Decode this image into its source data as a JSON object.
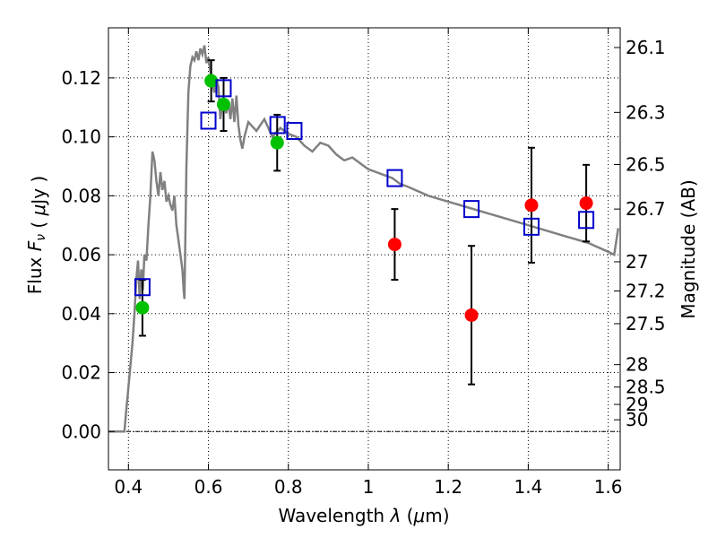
{
  "chart_data": {
    "type": "scatter",
    "xlabel": "Wavelength  λ (μm)",
    "ylabel": "Flux  Fν  ( μJy )",
    "y2label": "Magnitude (AB)",
    "xlim": [
      0.35,
      1.63
    ],
    "ylim": [
      -0.013,
      0.137
    ],
    "grid": true,
    "x_ticks": [
      0.4,
      0.6,
      0.8,
      1.0,
      1.2,
      1.4,
      1.6
    ],
    "x_tick_labels": [
      "0.4",
      "0.6",
      "0.8",
      "1",
      "1.2",
      "1.4",
      "1.6"
    ],
    "y_ticks": [
      0.0,
      0.02,
      0.04,
      0.06,
      0.08,
      0.1,
      0.12
    ],
    "y_tick_labels": [
      "0.00",
      "0.02",
      "0.04",
      "0.06",
      "0.08",
      "0.10",
      "0.12"
    ],
    "magnitude_ticks": [
      {
        "label": "26.1",
        "flux": 0.1303
      },
      {
        "label": "26.3",
        "flux": 0.1083
      },
      {
        "label": "26.5",
        "flux": 0.0906
      },
      {
        "label": "26.7",
        "flux": 0.0755
      },
      {
        "label": "27",
        "flux": 0.0576
      },
      {
        "label": "27.2",
        "flux": 0.0477
      },
      {
        "label": "27.5",
        "flux": 0.0366
      },
      {
        "label": "28",
        "flux": 0.0227
      },
      {
        "label": "28.5",
        "flux": 0.0151
      },
      {
        "label": "29",
        "flux": 0.0092
      },
      {
        "label": "30",
        "flux": 0.004
      }
    ],
    "series": [
      {
        "color": "#808080",
        "style": "line",
        "x": [
          0.35,
          0.39,
          0.395,
          0.398,
          0.41,
          0.415,
          0.42,
          0.424,
          0.428,
          0.432,
          0.436,
          0.44,
          0.445,
          0.45,
          0.455,
          0.46,
          0.465,
          0.47,
          0.475,
          0.48,
          0.485,
          0.49,
          0.495,
          0.5,
          0.505,
          0.51,
          0.515,
          0.52,
          0.525,
          0.53,
          0.535,
          0.538,
          0.54,
          0.545,
          0.55,
          0.555,
          0.56,
          0.565,
          0.57,
          0.575,
          0.58,
          0.585,
          0.59,
          0.595,
          0.6,
          0.605,
          0.61,
          0.615,
          0.62,
          0.625,
          0.63,
          0.635,
          0.64,
          0.645,
          0.65,
          0.655,
          0.66,
          0.665,
          0.67,
          0.675,
          0.68,
          0.685,
          0.69,
          0.7,
          0.72,
          0.74,
          0.76,
          0.78,
          0.8,
          0.82,
          0.84,
          0.86,
          0.88,
          0.9,
          0.92,
          0.94,
          0.96,
          0.98,
          1.0,
          1.02,
          1.04,
          1.06,
          1.08,
          1.1,
          1.15,
          1.2,
          1.25,
          1.3,
          1.35,
          1.4,
          1.45,
          1.5,
          1.55,
          1.6,
          1.615,
          1.625
        ],
        "y": [
          0.0,
          0.0,
          0.008,
          0.012,
          0.03,
          0.04,
          0.052,
          0.058,
          0.045,
          0.055,
          0.048,
          0.06,
          0.058,
          0.07,
          0.08,
          0.095,
          0.092,
          0.085,
          0.08,
          0.088,
          0.082,
          0.085,
          0.078,
          0.08,
          0.077,
          0.075,
          0.08,
          0.07,
          0.065,
          0.06,
          0.055,
          0.048,
          0.045,
          0.09,
          0.115,
          0.124,
          0.127,
          0.126,
          0.129,
          0.126,
          0.13,
          0.128,
          0.131,
          0.125,
          0.127,
          0.122,
          0.118,
          0.115,
          0.12,
          0.117,
          0.106,
          0.112,
          0.11,
          0.108,
          0.112,
          0.106,
          0.113,
          0.105,
          0.114,
          0.104,
          0.099,
          0.096,
          0.1,
          0.105,
          0.102,
          0.106,
          0.1,
          0.103,
          0.101,
          0.1,
          0.097,
          0.095,
          0.098,
          0.097,
          0.094,
          0.092,
          0.093,
          0.091,
          0.089,
          0.088,
          0.087,
          0.086,
          0.084,
          0.083,
          0.08,
          0.078,
          0.076,
          0.074,
          0.072,
          0.07,
          0.068,
          0.066,
          0.064,
          0.061,
          0.06,
          0.069
        ]
      },
      {
        "color": "#00c000",
        "style": "filled-circle",
        "x": [
          0.435,
          0.607,
          0.638,
          0.772
        ],
        "y": [
          0.042,
          0.119,
          0.111,
          0.098
        ],
        "yerr_low": [
          0.0095,
          0.007,
          0.009,
          0.0095
        ],
        "yerr_high": [
          0.0095,
          0.007,
          0.009,
          0.0095
        ]
      },
      {
        "color": "#ff0000",
        "style": "filled-circle",
        "x": [
          1.066,
          1.258,
          1.408,
          1.545
        ],
        "y": [
          0.0635,
          0.0395,
          0.0768,
          0.0775
        ],
        "yerr_low": [
          0.012,
          0.0235,
          0.0195,
          0.013
        ],
        "yerr_high": [
          0.012,
          0.0235,
          0.0195,
          0.013
        ]
      },
      {
        "color": "#0000cc",
        "style": "open-square",
        "x": [
          0.435,
          0.6,
          0.638,
          0.773,
          0.815,
          1.066,
          1.258,
          1.408,
          1.545
        ],
        "y": [
          0.049,
          0.1055,
          0.1165,
          0.104,
          0.102,
          0.086,
          0.0755,
          0.0695,
          0.0718
        ]
      }
    ]
  }
}
